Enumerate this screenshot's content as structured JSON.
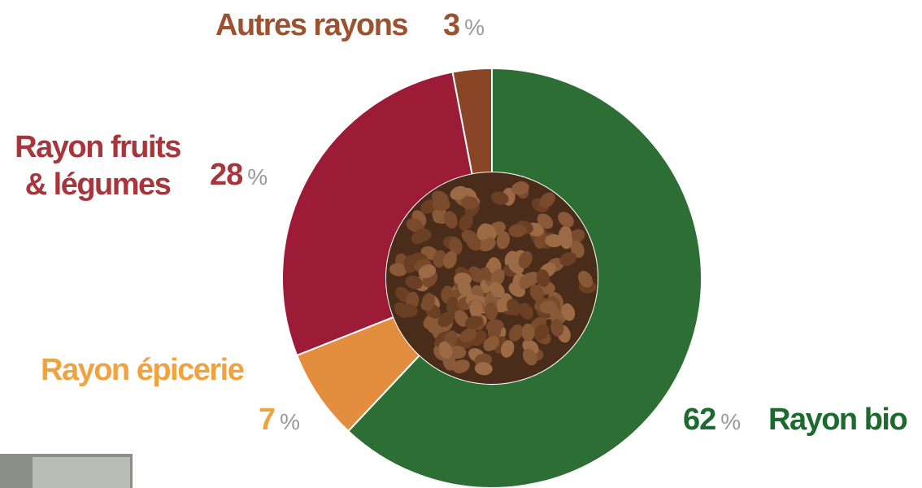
{
  "chart_data": {
    "type": "donut",
    "categories": [
      "Rayon bio",
      "Rayon épicerie",
      "Rayon fruits & légumes",
      "Autres rayons"
    ],
    "values": [
      62,
      7,
      28,
      3
    ],
    "unit": "%",
    "colors": [
      "#2d6e35",
      "#e38d3f",
      "#9c1c37",
      "#8a4527"
    ],
    "label_colors": [
      "#1d6a2f",
      "#f0a23f",
      "#a6363c",
      "#9b5231"
    ]
  }
}
